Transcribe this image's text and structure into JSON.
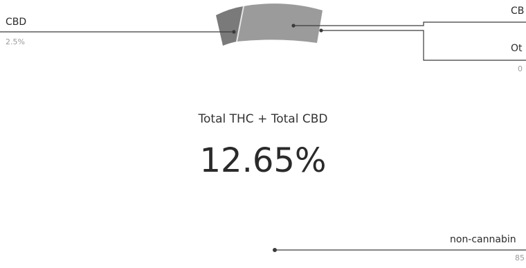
{
  "chart_data": {
    "type": "sunburst-segment",
    "center_title": "Total THC + Total CBD",
    "center_value": "12.65%",
    "segments": [
      {
        "name": "CBD",
        "value_label": "2.5%",
        "color": "#7a7a7a"
      },
      {
        "name": "CB",
        "value_label": "",
        "color": "#9b9b9b"
      },
      {
        "name": "Ot",
        "value_label": "0",
        "color": "#9b9b9b"
      },
      {
        "name": "non-cannabin",
        "value_label": "85",
        "color": "#555555"
      }
    ]
  }
}
